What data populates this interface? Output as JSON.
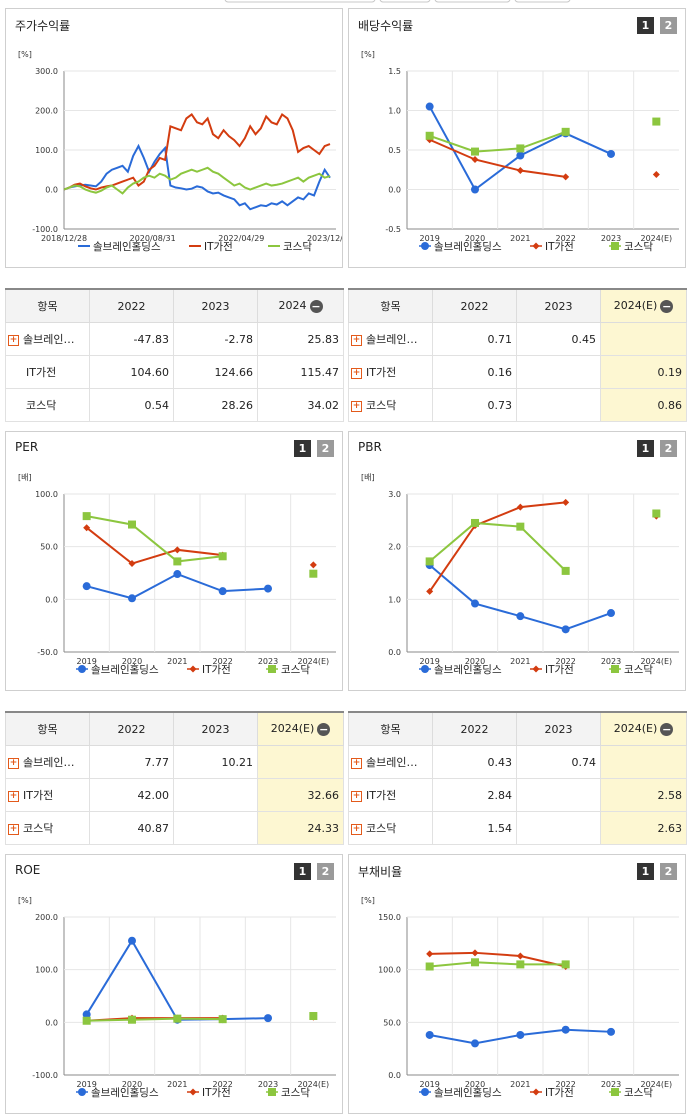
{
  "colors": {
    "s1": "#2a6bd8",
    "s2": "#d33c10",
    "s3": "#8cc63f"
  },
  "legend": [
    "솔브레인홀딩스",
    "IT가전",
    "코스닥"
  ],
  "buttons": [
    "1",
    "2"
  ],
  "charts": {
    "stock": {
      "title": "주가수익률",
      "unit": "[%]",
      "type": "line",
      "ylim": [
        -100,
        300
      ],
      "yticks": [
        "300.0",
        "200.0",
        "100.0",
        "0.0",
        "-100.0"
      ],
      "xlabels": [
        "2018/12/28",
        "2020/08/31",
        "2022/04/29",
        "2023/12/28"
      ],
      "series": [
        {
          "name": "솔브레인홀딩스",
          "values": [
            0,
            5,
            8,
            10,
            12,
            10,
            8,
            20,
            40,
            50,
            55,
            60,
            45,
            85,
            110,
            80,
            45,
            70,
            90,
            105,
            10,
            5,
            3,
            0,
            2,
            8,
            5,
            -5,
            -10,
            -8,
            -15,
            -20,
            -25,
            -40,
            -35,
            -50,
            -45,
            -40,
            -42,
            -35,
            -38,
            -30,
            -40,
            -30,
            -20,
            -25,
            -10,
            -15,
            20,
            50,
            30
          ]
        },
        {
          "name": "IT가전",
          "values": [
            0,
            5,
            12,
            15,
            8,
            3,
            0,
            5,
            8,
            10,
            15,
            20,
            25,
            30,
            10,
            20,
            50,
            60,
            80,
            75,
            160,
            155,
            150,
            180,
            190,
            170,
            165,
            180,
            140,
            130,
            150,
            135,
            125,
            110,
            130,
            160,
            140,
            155,
            185,
            170,
            165,
            190,
            180,
            150,
            95,
            105,
            110,
            100,
            90,
            110,
            115
          ]
        },
        {
          "name": "코스닥",
          "values": [
            0,
            5,
            10,
            8,
            0,
            -5,
            -8,
            -3,
            5,
            10,
            0,
            -10,
            5,
            15,
            20,
            30,
            35,
            30,
            40,
            35,
            25,
            30,
            40,
            45,
            50,
            45,
            50,
            55,
            45,
            40,
            30,
            20,
            10,
            15,
            5,
            0,
            5,
            10,
            15,
            10,
            12,
            15,
            20,
            25,
            30,
            20,
            30,
            35,
            40,
            30,
            34
          ]
        }
      ]
    },
    "div": {
      "title": "배당수익률",
      "unit": "[%]",
      "type": "line",
      "ylim": [
        -0.5,
        1.5
      ],
      "yticks": [
        "1.5",
        "1.0",
        "0.5",
        "0.0",
        "-0.5"
      ],
      "xlabels": [
        "2019",
        "2020",
        "2021",
        "2022",
        "2023",
        "2024(E)"
      ],
      "series": [
        {
          "name": "솔브레인홀딩스",
          "values": [
            1.05,
            0.0,
            0.43,
            0.71,
            0.45,
            null
          ]
        },
        {
          "name": "IT가전",
          "values": [
            0.63,
            0.38,
            0.24,
            0.16,
            null,
            0.19
          ]
        },
        {
          "name": "코스닥",
          "values": [
            0.68,
            0.48,
            0.52,
            0.73,
            null,
            0.86
          ]
        }
      ]
    },
    "per": {
      "title": "PER",
      "unit": "[배]",
      "type": "line",
      "ylim": [
        -50,
        100
      ],
      "yticks": [
        "100.0",
        "50.0",
        "0.0",
        "-50.0"
      ],
      "xlabels": [
        "2019",
        "2020",
        "2021",
        "2022",
        "2023",
        "2024(E)"
      ],
      "series": [
        {
          "name": "솔브레인홀딩스",
          "values": [
            12.5,
            1,
            24,
            7.77,
            10.21,
            null
          ]
        },
        {
          "name": "IT가전",
          "values": [
            68,
            34,
            47,
            42.0,
            null,
            32.66
          ]
        },
        {
          "name": "코스닥",
          "values": [
            79,
            71,
            36,
            40.87,
            null,
            24.33
          ]
        }
      ]
    },
    "pbr": {
      "title": "PBR",
      "unit": "[배]",
      "type": "line",
      "ylim": [
        0,
        3
      ],
      "yticks": [
        "3.0",
        "2.0",
        "1.0",
        "0.0"
      ],
      "xlabels": [
        "2019",
        "2020",
        "2021",
        "2022",
        "2023",
        "2024(E)"
      ],
      "series": [
        {
          "name": "솔브레인홀딩스",
          "values": [
            1.65,
            0.92,
            0.68,
            0.43,
            0.74,
            null
          ]
        },
        {
          "name": "IT가전",
          "values": [
            1.15,
            2.4,
            2.75,
            2.84,
            null,
            2.58
          ]
        },
        {
          "name": "코스닥",
          "values": [
            1.72,
            2.45,
            2.38,
            1.54,
            null,
            2.63
          ]
        }
      ]
    },
    "roe": {
      "title": "ROE",
      "unit": "[%]",
      "type": "line",
      "ylim": [
        -100,
        200
      ],
      "yticks": [
        "200.0",
        "100.0",
        "0.0",
        "-100.0"
      ],
      "xlabels": [
        "2019",
        "2020",
        "2021",
        "2022",
        "2023",
        "2024(E)"
      ],
      "series": [
        {
          "name": "솔브레인홀딩스",
          "values": [
            15,
            155,
            5,
            6,
            8,
            null
          ]
        },
        {
          "name": "IT가전",
          "values": [
            3,
            8,
            8,
            8,
            null,
            10
          ]
        },
        {
          "name": "코스닥",
          "values": [
            3,
            5,
            7,
            6,
            null,
            12
          ]
        }
      ]
    },
    "debt": {
      "title": "부채비율",
      "unit": "[%]",
      "type": "line",
      "ylim": [
        0,
        150
      ],
      "yticks": [
        "150.0",
        "100.0",
        "50.0",
        "0.0"
      ],
      "xlabels": [
        "2019",
        "2020",
        "2021",
        "2022",
        "2023",
        "2024(E)"
      ],
      "series": [
        {
          "name": "솔브레인홀딩스",
          "values": [
            38,
            30,
            38,
            43,
            41,
            null
          ]
        },
        {
          "name": "IT가전",
          "values": [
            115,
            116,
            113,
            103,
            null,
            null
          ]
        },
        {
          "name": "코스닥",
          "values": [
            103,
            107,
            105,
            105,
            null,
            null
          ]
        }
      ]
    }
  },
  "tables": {
    "stock": {
      "head": [
        "항목",
        "2022",
        "2023",
        "2024"
      ],
      "rows": [
        [
          "솔브레인…",
          "-47.83",
          "-2.78",
          "25.83"
        ],
        [
          "IT가전",
          "104.60",
          "124.66",
          "115.47"
        ],
        [
          "코스닥",
          "0.54",
          "28.26",
          "34.02"
        ]
      ]
    },
    "div": {
      "head": [
        "항목",
        "2022",
        "2023",
        "2024(E)"
      ],
      "rows": [
        [
          "솔브레인…",
          "0.71",
          "0.45",
          ""
        ],
        [
          "IT가전",
          "0.16",
          "",
          "0.19"
        ],
        [
          "코스닥",
          "0.73",
          "",
          "0.86"
        ]
      ]
    },
    "per": {
      "head": [
        "항목",
        "2022",
        "2023",
        "2024(E)"
      ],
      "rows": [
        [
          "솔브레인…",
          "7.77",
          "10.21",
          ""
        ],
        [
          "IT가전",
          "42.00",
          "",
          "32.66"
        ],
        [
          "코스닥",
          "40.87",
          "",
          "24.33"
        ]
      ]
    },
    "pbr": {
      "head": [
        "항목",
        "2022",
        "2023",
        "2024(E)"
      ],
      "rows": [
        [
          "솔브레인…",
          "0.43",
          "0.74",
          ""
        ],
        [
          "IT가전",
          "2.84",
          "",
          "2.58"
        ],
        [
          "코스닥",
          "1.54",
          "",
          "2.63"
        ]
      ]
    }
  }
}
